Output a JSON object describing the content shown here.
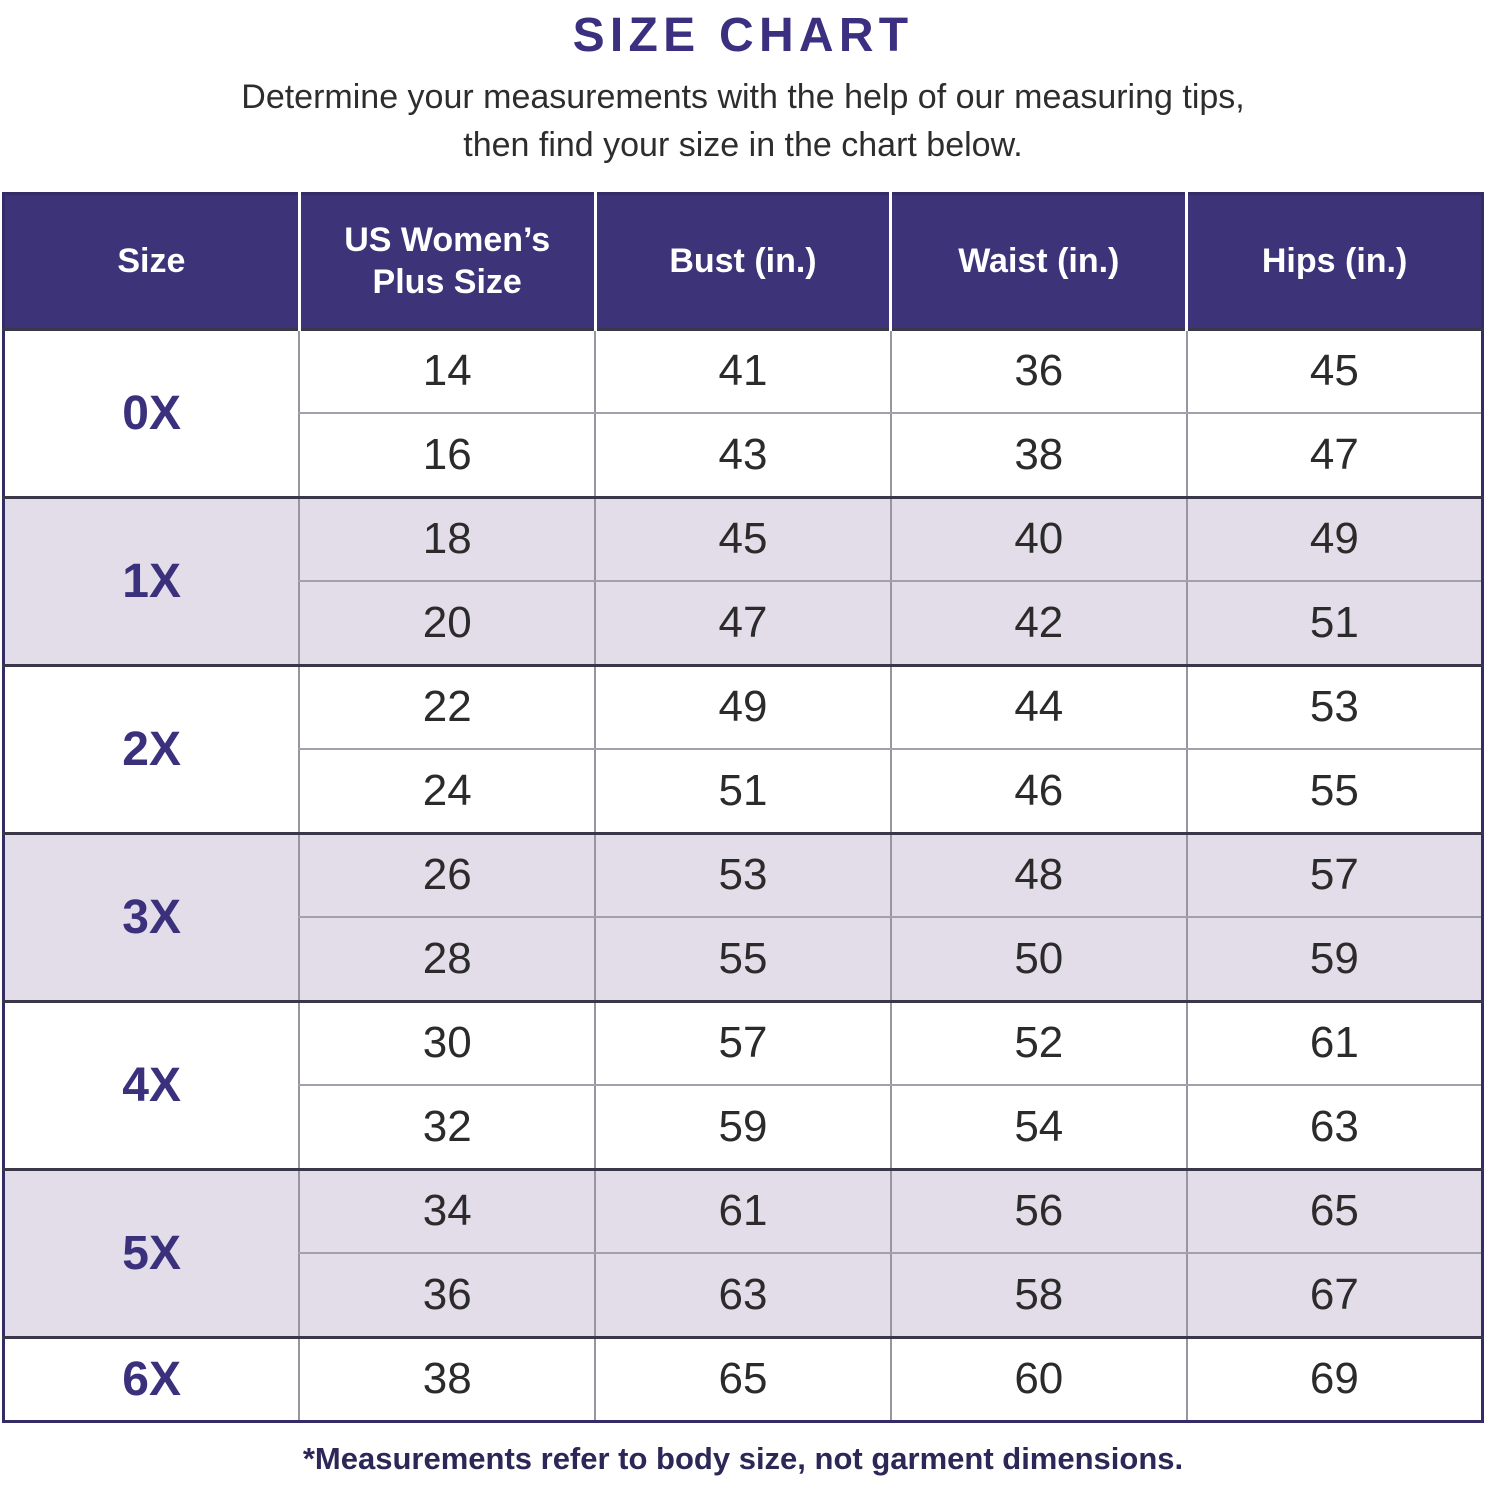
{
  "page": {
    "title": "SIZE CHART",
    "subtitle_line1": "Determine your measurements with the help of our measuring tips,",
    "subtitle_line2": "then find your size in the chart below.",
    "footnote": "*Measurements refer to body size, not garment dimensions."
  },
  "colors": {
    "header_bg": "#3d3378",
    "header_text": "#ffffff",
    "accent": "#3a307c",
    "shaded_row_bg": "#e2dde8",
    "body_text": "#2b2b2b",
    "grid_line": "#97959d",
    "group_divider": "#3a3748",
    "outer_border": "#332c66"
  },
  "chart_data": {
    "type": "table",
    "title": "SIZE CHART",
    "columns": [
      "Size",
      "US Women’s Plus Size",
      "Bust (in.)",
      "Waist (in.)",
      "Hips (in.)"
    ],
    "rows": [
      [
        "0X",
        "14",
        "41",
        "36",
        "45"
      ],
      [
        "0X",
        "16",
        "43",
        "38",
        "47"
      ],
      [
        "1X",
        "18",
        "45",
        "40",
        "49"
      ],
      [
        "1X",
        "20",
        "47",
        "42",
        "51"
      ],
      [
        "2X",
        "22",
        "49",
        "44",
        "53"
      ],
      [
        "2X",
        "24",
        "51",
        "46",
        "55"
      ],
      [
        "3X",
        "26",
        "53",
        "48",
        "57"
      ],
      [
        "3X",
        "28",
        "55",
        "50",
        "59"
      ],
      [
        "4X",
        "30",
        "57",
        "52",
        "61"
      ],
      [
        "4X",
        "32",
        "59",
        "54",
        "63"
      ],
      [
        "5X",
        "34",
        "61",
        "56",
        "65"
      ],
      [
        "5X",
        "36",
        "63",
        "58",
        "67"
      ],
      [
        "6X",
        "38",
        "65",
        "60",
        "69"
      ]
    ]
  }
}
